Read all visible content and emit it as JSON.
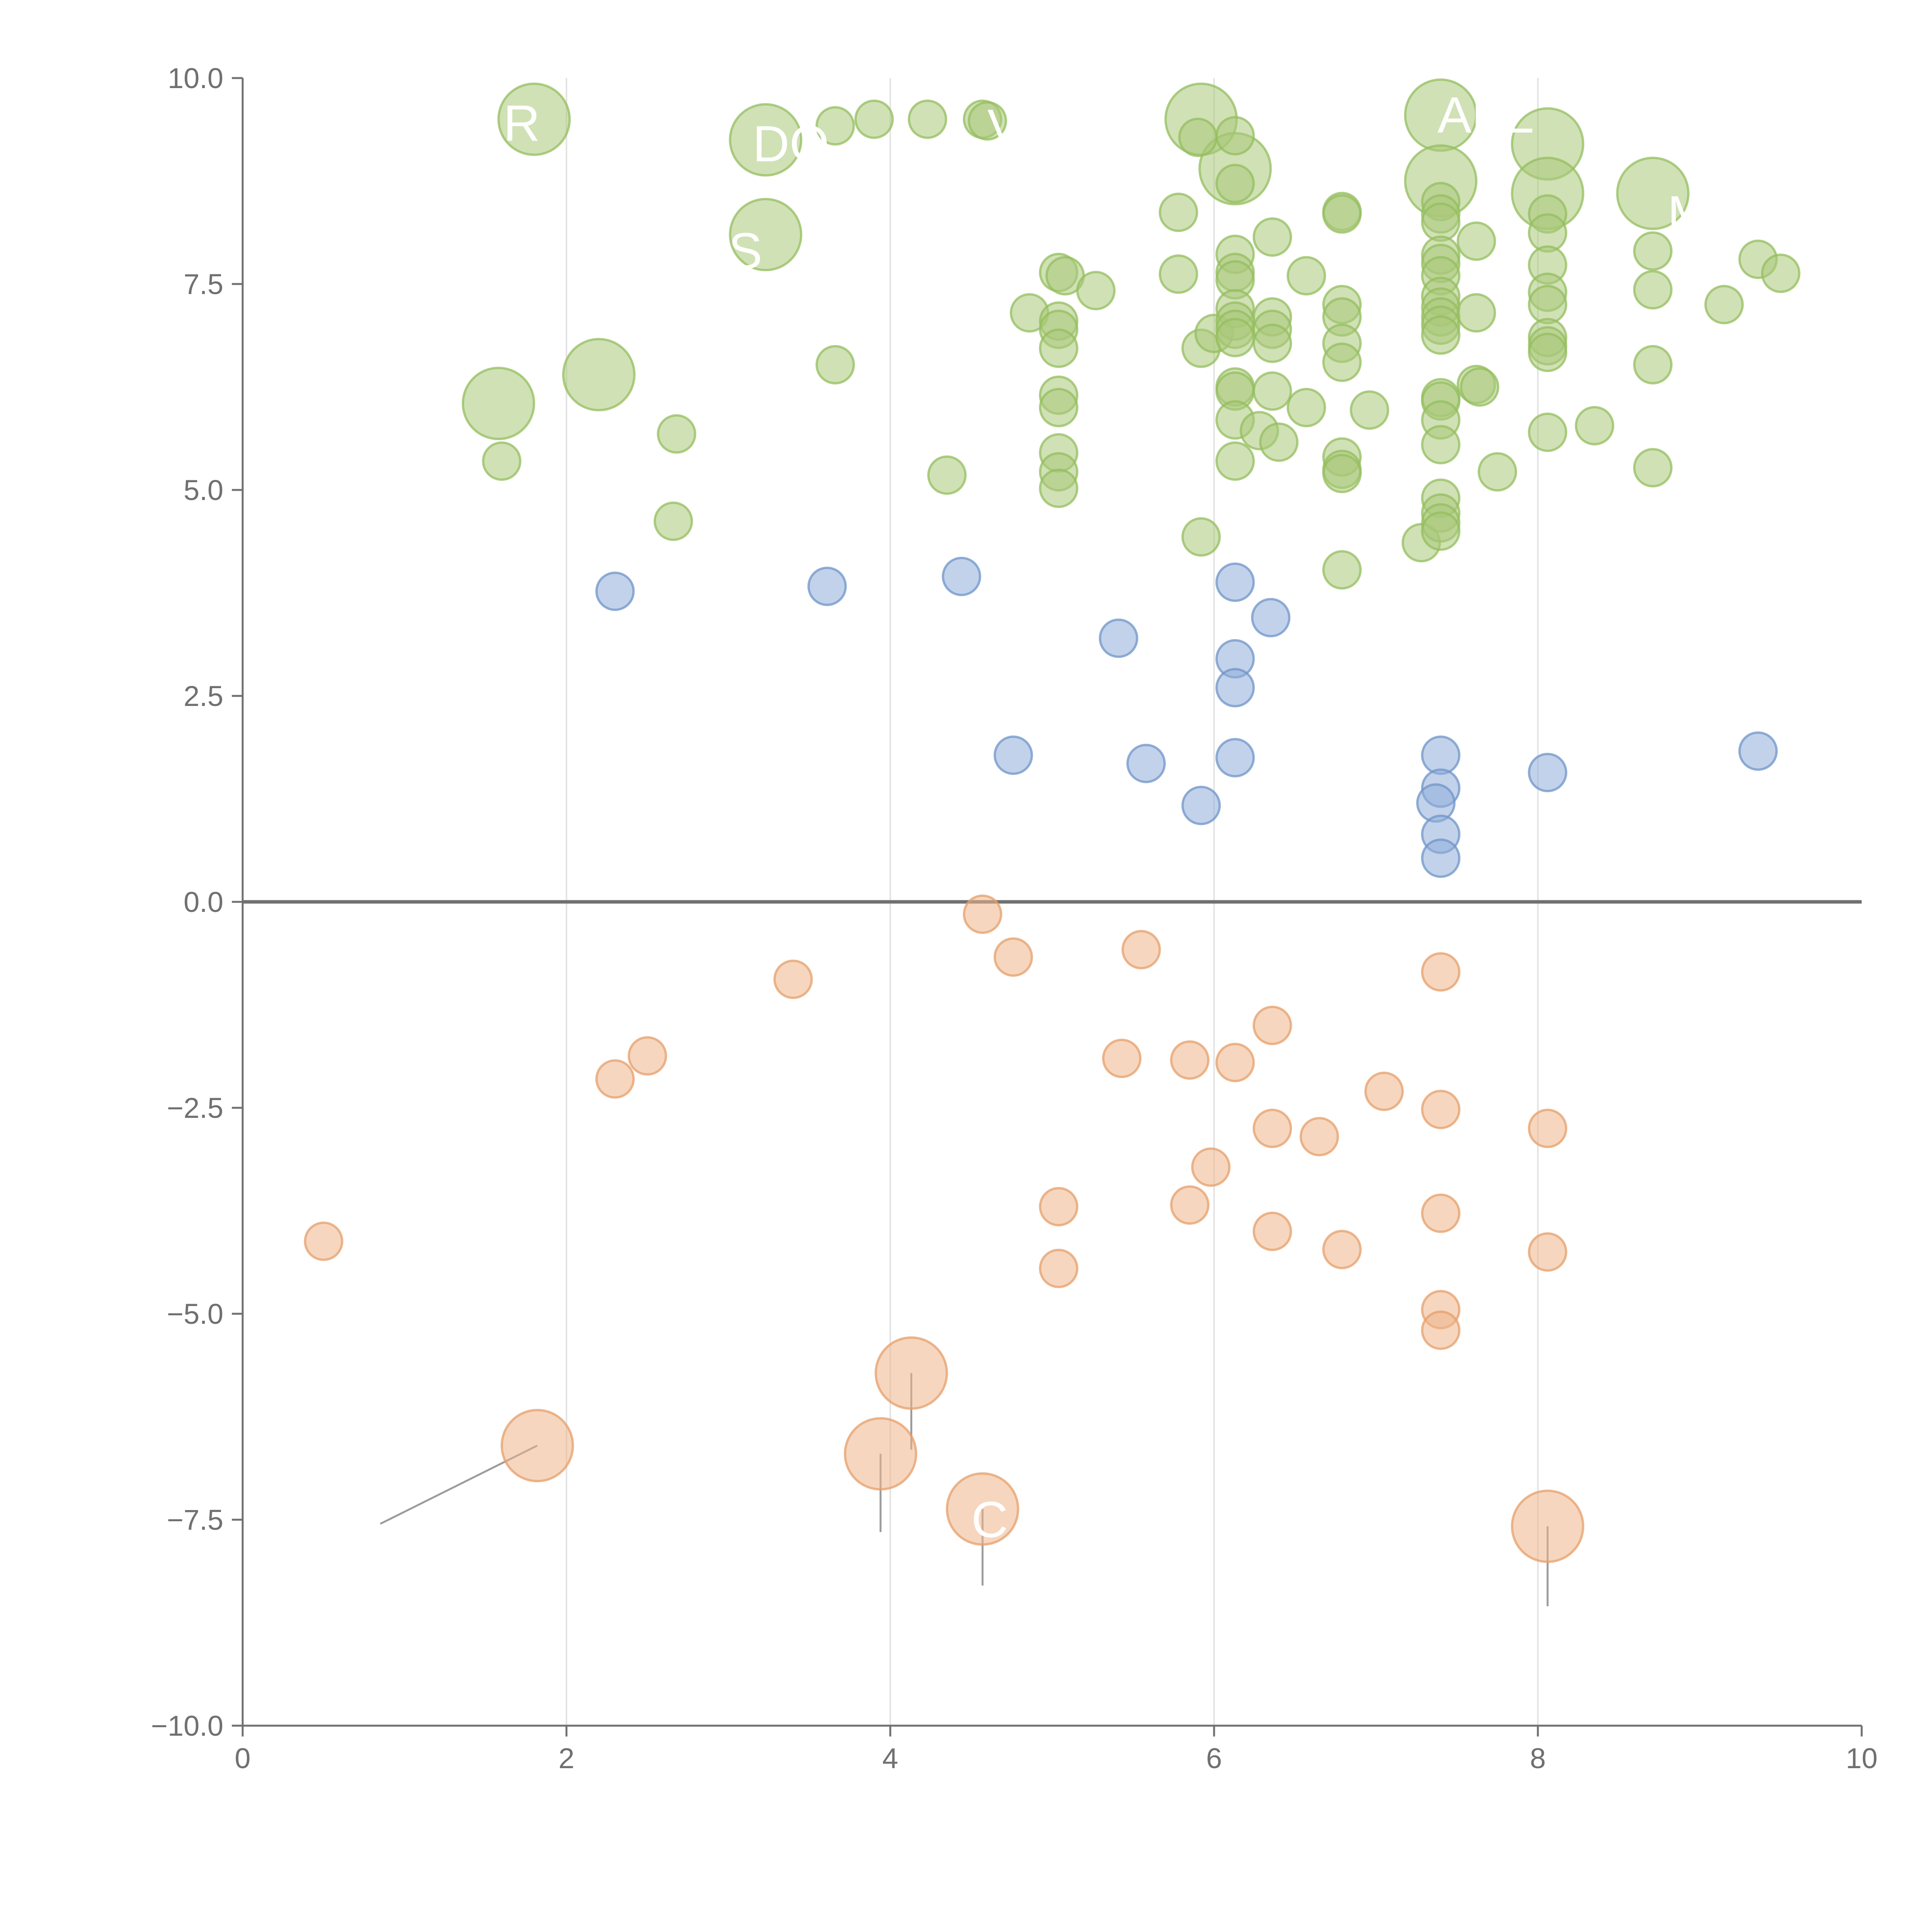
{
  "chart_data": {
    "type": "scatter",
    "title": "",
    "xlabel": "",
    "ylabel": "",
    "xlim": [
      0,
      10
    ],
    "ylim": [
      -10,
      10
    ],
    "grid": "vertical lines at even x",
    "x_ticks": [
      "0",
      "2",
      "4",
      "6",
      "8",
      "10"
    ],
    "y_ticks": [
      "−10.0",
      "−7.5",
      "−5.0",
      "−2.5",
      "0.0",
      "2.5",
      "5.0",
      "7.5",
      "10.0"
    ],
    "colors": {
      "positive": "#a9c97a",
      "positive_stroke": "#94bd5e",
      "neutral": "#8fadd9",
      "neutral_stroke": "#6f94c8",
      "negative": "#efb48a",
      "negative_stroke": "#e59f6a",
      "axis": "#707070",
      "zero_line": "#707070",
      "grid": "#e3e3e3",
      "leader": "#9c9c9c"
    },
    "series": [
      {
        "name": "positive",
        "points": [
          {
            "x": 1.8,
            "y": 9.5,
            "r": 2
          },
          {
            "x": 3.23,
            "y": 9.25,
            "r": 2
          },
          {
            "x": 3.23,
            "y": 8.1,
            "r": 2
          },
          {
            "x": 2.2,
            "y": 6.4,
            "r": 2
          },
          {
            "x": 1.58,
            "y": 6.05,
            "r": 2
          },
          {
            "x": 5.92,
            "y": 9.5,
            "r": 2
          },
          {
            "x": 6.13,
            "y": 8.9,
            "r": 2
          },
          {
            "x": 7.4,
            "y": 9.55,
            "r": 2
          },
          {
            "x": 7.4,
            "y": 8.75,
            "r": 2
          },
          {
            "x": 8.06,
            "y": 9.2,
            "r": 2
          },
          {
            "x": 8.06,
            "y": 8.6,
            "r": 2
          },
          {
            "x": 8.71,
            "y": 8.6,
            "r": 2
          },
          {
            "x": 3.66,
            "y": 9.42
          },
          {
            "x": 3.9,
            "y": 9.5
          },
          {
            "x": 4.23,
            "y": 9.5
          },
          {
            "x": 4.57,
            "y": 9.5
          },
          {
            "x": 4.6,
            "y": 9.48
          },
          {
            "x": 5.9,
            "y": 9.28
          },
          {
            "x": 6.13,
            "y": 9.3
          },
          {
            "x": 5.78,
            "y": 8.37
          },
          {
            "x": 6.13,
            "y": 8.72
          },
          {
            "x": 6.36,
            "y": 8.07
          },
          {
            "x": 6.79,
            "y": 8.38
          },
          {
            "x": 6.79,
            "y": 8.35
          },
          {
            "x": 7.4,
            "y": 8.5
          },
          {
            "x": 7.4,
            "y": 8.35
          },
          {
            "x": 7.4,
            "y": 8.25
          },
          {
            "x": 7.62,
            "y": 8.02
          },
          {
            "x": 8.06,
            "y": 8.35
          },
          {
            "x": 8.06,
            "y": 8.12
          },
          {
            "x": 7.4,
            "y": 7.85
          },
          {
            "x": 7.4,
            "y": 7.75
          },
          {
            "x": 7.4,
            "y": 7.6
          },
          {
            "x": 6.13,
            "y": 7.86
          },
          {
            "x": 6.13,
            "y": 7.64
          },
          {
            "x": 6.13,
            "y": 7.55
          },
          {
            "x": 5.78,
            "y": 7.62
          },
          {
            "x": 5.04,
            "y": 7.64
          },
          {
            "x": 5.08,
            "y": 7.6
          },
          {
            "x": 5.27,
            "y": 7.42
          },
          {
            "x": 6.57,
            "y": 7.6
          },
          {
            "x": 8.06,
            "y": 7.73
          },
          {
            "x": 8.71,
            "y": 7.9
          },
          {
            "x": 9.36,
            "y": 7.8
          },
          {
            "x": 9.5,
            "y": 7.63
          },
          {
            "x": 4.86,
            "y": 7.15
          },
          {
            "x": 5.04,
            "y": 7.05
          },
          {
            "x": 5.04,
            "y": 6.95
          },
          {
            "x": 5.04,
            "y": 6.72
          },
          {
            "x": 5.92,
            "y": 6.72
          },
          {
            "x": 6.0,
            "y": 6.9
          },
          {
            "x": 6.13,
            "y": 7.2
          },
          {
            "x": 6.13,
            "y": 7.05
          },
          {
            "x": 6.13,
            "y": 6.95
          },
          {
            "x": 6.13,
            "y": 6.85
          },
          {
            "x": 6.36,
            "y": 7.1
          },
          {
            "x": 6.36,
            "y": 6.95
          },
          {
            "x": 6.36,
            "y": 6.78
          },
          {
            "x": 6.79,
            "y": 7.25
          },
          {
            "x": 6.79,
            "y": 7.1
          },
          {
            "x": 6.79,
            "y": 6.78
          },
          {
            "x": 6.79,
            "y": 6.55
          },
          {
            "x": 7.4,
            "y": 7.35
          },
          {
            "x": 7.4,
            "y": 7.22
          },
          {
            "x": 7.4,
            "y": 7.1
          },
          {
            "x": 7.4,
            "y": 7.0
          },
          {
            "x": 7.4,
            "y": 6.88
          },
          {
            "x": 7.62,
            "y": 7.15
          },
          {
            "x": 8.06,
            "y": 7.4
          },
          {
            "x": 8.06,
            "y": 7.25
          },
          {
            "x": 8.06,
            "y": 6.85
          },
          {
            "x": 8.06,
            "y": 6.75
          },
          {
            "x": 8.06,
            "y": 6.67
          },
          {
            "x": 8.71,
            "y": 7.43
          },
          {
            "x": 9.15,
            "y": 7.25
          },
          {
            "x": 3.66,
            "y": 6.52
          },
          {
            "x": 8.71,
            "y": 6.52
          },
          {
            "x": 2.68,
            "y": 5.68
          },
          {
            "x": 1.6,
            "y": 5.35
          },
          {
            "x": 2.66,
            "y": 4.62
          },
          {
            "x": 4.35,
            "y": 5.18
          },
          {
            "x": 5.04,
            "y": 6.15
          },
          {
            "x": 5.04,
            "y": 6.0
          },
          {
            "x": 5.04,
            "y": 5.45
          },
          {
            "x": 5.04,
            "y": 5.22
          },
          {
            "x": 5.04,
            "y": 5.02
          },
          {
            "x": 6.13,
            "y": 6.25
          },
          {
            "x": 6.13,
            "y": 6.2
          },
          {
            "x": 6.13,
            "y": 5.85
          },
          {
            "x": 6.28,
            "y": 5.72
          },
          {
            "x": 6.4,
            "y": 5.58
          },
          {
            "x": 6.36,
            "y": 6.2
          },
          {
            "x": 6.57,
            "y": 6.0
          },
          {
            "x": 6.96,
            "y": 5.97
          },
          {
            "x": 6.13,
            "y": 5.35
          },
          {
            "x": 6.79,
            "y": 5.4
          },
          {
            "x": 6.79,
            "y": 5.25
          },
          {
            "x": 6.79,
            "y": 5.2
          },
          {
            "x": 7.4,
            "y": 6.12
          },
          {
            "x": 7.4,
            "y": 6.08
          },
          {
            "x": 7.4,
            "y": 5.85
          },
          {
            "x": 7.4,
            "y": 5.55
          },
          {
            "x": 7.62,
            "y": 6.28
          },
          {
            "x": 7.64,
            "y": 6.25
          },
          {
            "x": 7.75,
            "y": 5.22
          },
          {
            "x": 8.06,
            "y": 5.7
          },
          {
            "x": 8.35,
            "y": 5.78
          },
          {
            "x": 8.71,
            "y": 5.27
          },
          {
            "x": 5.92,
            "y": 4.43
          },
          {
            "x": 6.79,
            "y": 4.03
          },
          {
            "x": 7.28,
            "y": 4.36
          },
          {
            "x": 7.4,
            "y": 4.9
          },
          {
            "x": 7.4,
            "y": 4.72
          },
          {
            "x": 7.4,
            "y": 4.6
          },
          {
            "x": 7.4,
            "y": 4.5
          }
        ]
      },
      {
        "name": "neutral",
        "points": [
          {
            "x": 2.3,
            "y": 3.77
          },
          {
            "x": 3.61,
            "y": 3.83
          },
          {
            "x": 4.44,
            "y": 3.95
          },
          {
            "x": 5.41,
            "y": 3.2
          },
          {
            "x": 6.13,
            "y": 3.88
          },
          {
            "x": 6.35,
            "y": 3.45
          },
          {
            "x": 6.13,
            "y": 2.95
          },
          {
            "x": 6.13,
            "y": 2.6
          },
          {
            "x": 4.76,
            "y": 1.78
          },
          {
            "x": 5.58,
            "y": 1.68
          },
          {
            "x": 5.92,
            "y": 1.17
          },
          {
            "x": 6.13,
            "y": 1.75
          },
          {
            "x": 7.4,
            "y": 1.78
          },
          {
            "x": 7.4,
            "y": 1.38
          },
          {
            "x": 7.37,
            "y": 1.2
          },
          {
            "x": 7.4,
            "y": 0.82
          },
          {
            "x": 7.4,
            "y": 0.53
          },
          {
            "x": 8.06,
            "y": 1.57
          },
          {
            "x": 9.36,
            "y": 1.83
          }
        ]
      },
      {
        "name": "negative",
        "points": [
          {
            "x": 4.57,
            "y": -0.15
          },
          {
            "x": 4.76,
            "y": -0.67
          },
          {
            "x": 5.55,
            "y": -0.58
          },
          {
            "x": 3.4,
            "y": -0.94
          },
          {
            "x": 7.4,
            "y": -0.85
          },
          {
            "x": 2.5,
            "y": -1.87
          },
          {
            "x": 2.3,
            "y": -2.15
          },
          {
            "x": 5.43,
            "y": -1.9
          },
          {
            "x": 5.85,
            "y": -1.92
          },
          {
            "x": 6.13,
            "y": -1.95
          },
          {
            "x": 6.36,
            "y": -1.5
          },
          {
            "x": 7.05,
            "y": -2.3
          },
          {
            "x": 7.4,
            "y": -2.52
          },
          {
            "x": 6.36,
            "y": -2.75
          },
          {
            "x": 6.65,
            "y": -2.85
          },
          {
            "x": 8.06,
            "y": -2.75
          },
          {
            "x": 5.98,
            "y": -3.22
          },
          {
            "x": 5.04,
            "y": -3.7
          },
          {
            "x": 5.85,
            "y": -3.68
          },
          {
            "x": 7.4,
            "y": -3.78
          },
          {
            "x": 0.5,
            "y": -4.12
          },
          {
            "x": 6.36,
            "y": -4.0
          },
          {
            "x": 6.79,
            "y": -4.22
          },
          {
            "x": 8.06,
            "y": -4.25
          },
          {
            "x": 5.04,
            "y": -4.45
          },
          {
            "x": 7.4,
            "y": -4.95
          },
          {
            "x": 7.4,
            "y": -5.2
          },
          {
            "x": 4.13,
            "y": -5.72,
            "r": 2
          },
          {
            "x": 1.82,
            "y": -6.6,
            "r": 2
          },
          {
            "x": 3.94,
            "y": -6.7,
            "r": 2
          },
          {
            "x": 4.57,
            "y": -7.37,
            "r": 2
          },
          {
            "x": 8.06,
            "y": -7.58,
            "r": 2
          }
        ]
      }
    ],
    "annotations": [
      {
        "text": "R",
        "x": 1.61,
        "y": 9.45
      },
      {
        "text": "DO",
        "x": 3.15,
        "y": 9.2
      },
      {
        "text": "S",
        "x": 3.0,
        "y": 7.9
      },
      {
        "text": "AKL",
        "x": 7.38,
        "y": 9.55
      },
      {
        "text": "M",
        "x": 8.8,
        "y": 8.35
      },
      {
        "text": "C",
        "x": 4.5,
        "y": -7.5
      },
      {
        "text": "V",
        "x": 4.6,
        "y": 9.4
      }
    ]
  }
}
